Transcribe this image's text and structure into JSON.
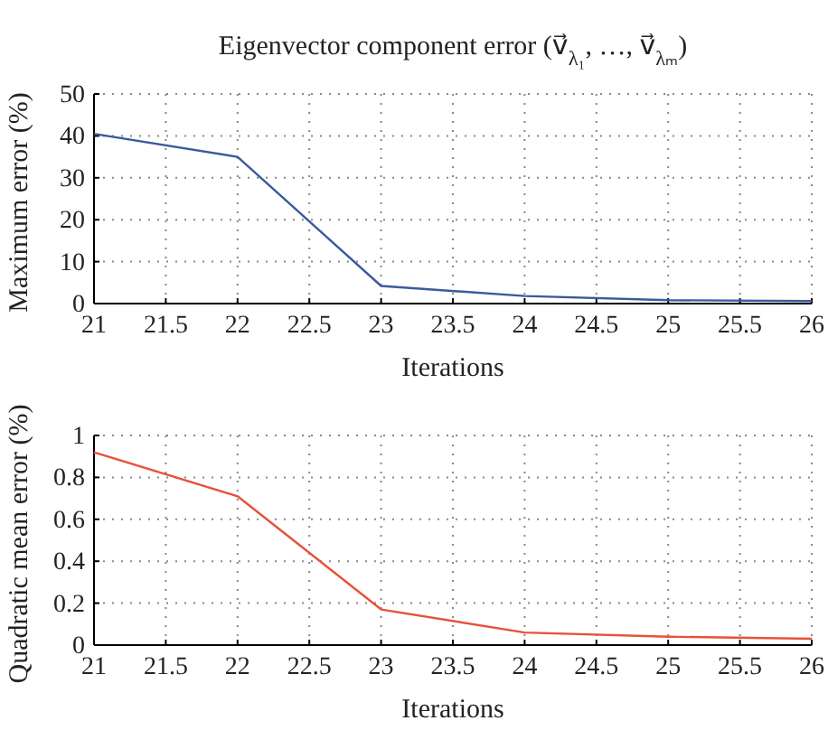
{
  "chart_data": [
    {
      "type": "line",
      "title": "Eigenvector component error (v⃗$_{λ₁}$, …, v⃗$_{λₘ}$)",
      "xlabel": "Iterations",
      "ylabel": "Maximum error (%)",
      "x": [
        21,
        22,
        23,
        24,
        25,
        26
      ],
      "series": [
        {
          "color": "#3a5a9c",
          "values": [
            40.5,
            35,
            4.2,
            1.8,
            0.8,
            0.6
          ]
        }
      ],
      "xlim": [
        21,
        26
      ],
      "xticks": [
        21,
        21.5,
        22,
        22.5,
        23,
        23.5,
        24,
        24.5,
        25,
        25.5,
        26
      ],
      "ylim": [
        0,
        50
      ],
      "yticks": [
        0,
        10,
        20,
        30,
        40,
        50
      ],
      "grid": true,
      "marker": "none",
      "line_style": "solid"
    },
    {
      "type": "line",
      "xlabel": "Iterations",
      "ylabel": "Quadratic mean error (%)",
      "x": [
        21,
        22,
        23,
        24,
        25,
        26
      ],
      "series": [
        {
          "color": "#e8513a",
          "values": [
            0.92,
            0.71,
            0.17,
            0.06,
            0.04,
            0.03
          ]
        }
      ],
      "xlim": [
        21,
        26
      ],
      "xticks": [
        21,
        21.5,
        22,
        22.5,
        23,
        23.5,
        24,
        24.5,
        25,
        25.5,
        26
      ],
      "ylim": [
        0,
        1
      ],
      "yticks": [
        0,
        0.2,
        0.4,
        0.6,
        0.8,
        1
      ],
      "grid": true,
      "marker": "none",
      "line_style": "solid"
    }
  ]
}
